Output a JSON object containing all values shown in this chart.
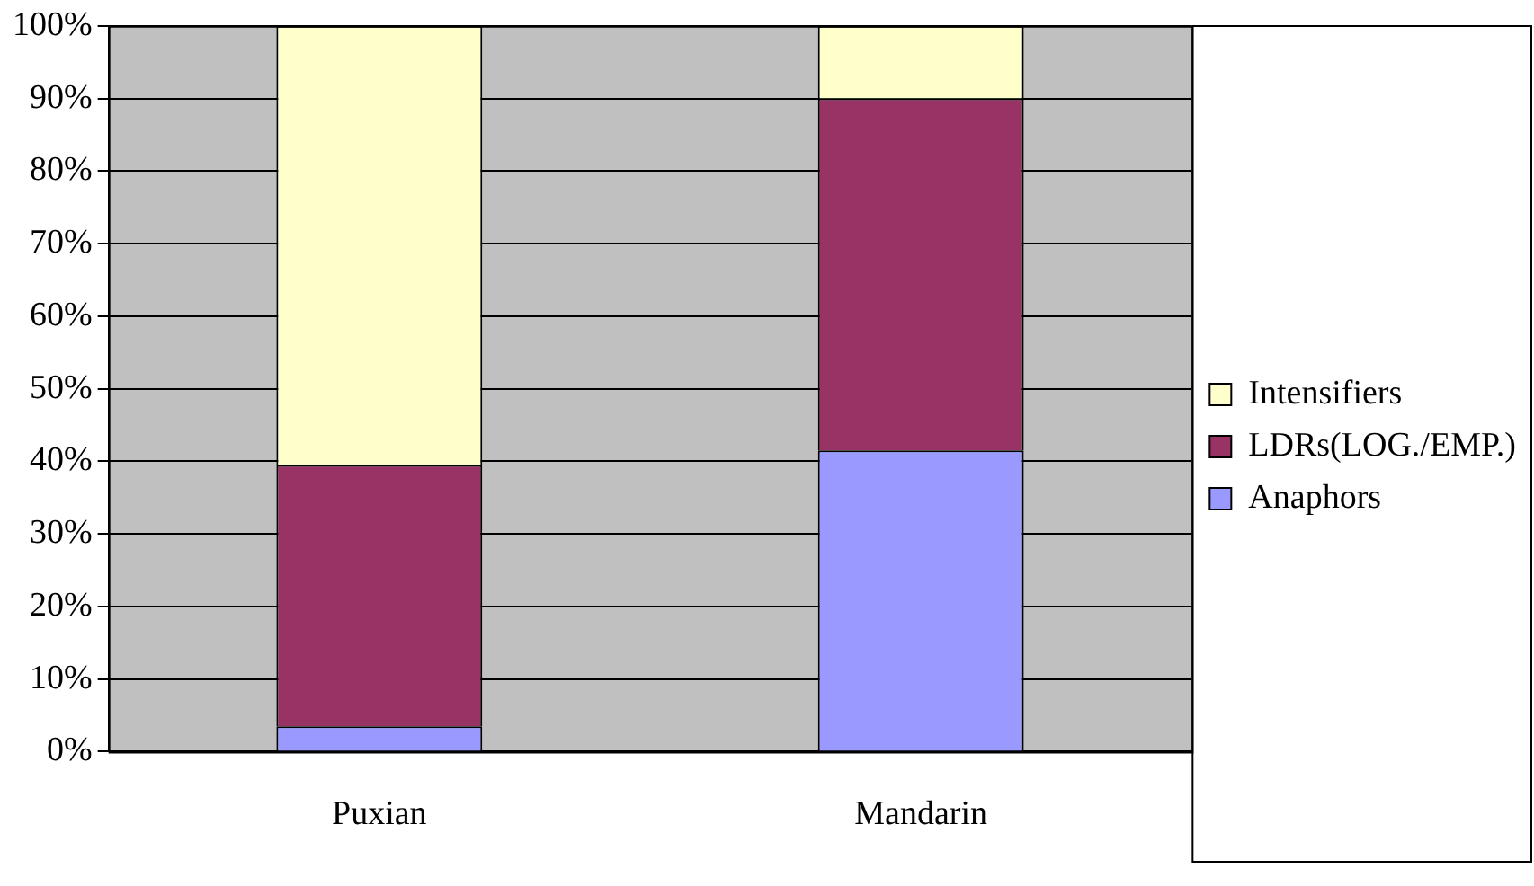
{
  "chart_data": {
    "type": "bar",
    "stacked": true,
    "categories": [
      "Puxian",
      "Mandarin"
    ],
    "series": [
      {
        "name": "Anaphors",
        "color": "#9999ff",
        "values": [
          3.5,
          41.5
        ]
      },
      {
        "name": "LDRs(LOG./EMP.)",
        "color": "#993366",
        "values": [
          36,
          48.5
        ]
      },
      {
        "name": "Intensifiers",
        "color": "#ffffcc",
        "values": [
          60.5,
          10
        ]
      }
    ],
    "ylim": [
      0,
      100
    ],
    "yticks": [
      {
        "value": 0,
        "label": "0%"
      },
      {
        "value": 10,
        "label": "10%"
      },
      {
        "value": 20,
        "label": "20%"
      },
      {
        "value": 30,
        "label": "30%"
      },
      {
        "value": 40,
        "label": "40%"
      },
      {
        "value": 50,
        "label": "50%"
      },
      {
        "value": 60,
        "label": "60%"
      },
      {
        "value": 70,
        "label": "70%"
      },
      {
        "value": 80,
        "label": "80%"
      },
      {
        "value": 90,
        "label": "90%"
      },
      {
        "value": 100,
        "label": "100%"
      }
    ],
    "grid": "y",
    "legend": "right"
  }
}
